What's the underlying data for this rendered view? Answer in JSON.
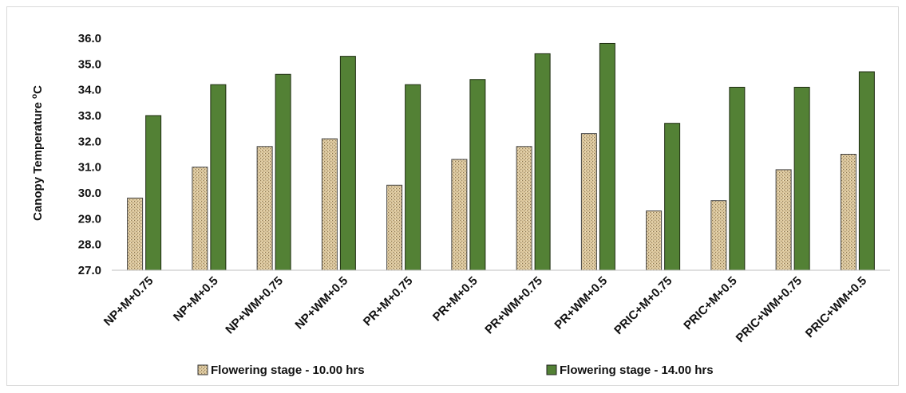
{
  "chart_data": {
    "type": "bar",
    "ylabel": "Canopy Temperature",
    "ylabel_superscript": "o",
    "ylabel_unit": "C",
    "ylim": [
      27.0,
      36.0
    ],
    "yticks": [
      "27.0",
      "28.0",
      "29.0",
      "30.0",
      "31.0",
      "32.0",
      "33.0",
      "34.0",
      "35.0",
      "36.0"
    ],
    "ytick_values": [
      27,
      28,
      29,
      30,
      31,
      32,
      33,
      34,
      35,
      36
    ],
    "categories": [
      "NP+M+0.75",
      "NP+M+0.5",
      "NP+WM+0.75",
      "NP+WM+0.5",
      "PR+M+0.75",
      "PR+M+0.5",
      "PR+WM+0.75",
      "PR+WM+0.5",
      "PRIC+M+0.75",
      "PRIC+M+0.5",
      "PRIC+WM+0.75",
      "PRIC+WM+0.5"
    ],
    "series": [
      {
        "name": "Flowering stage - 10.00 hrs",
        "color": "#d9c49a",
        "values": [
          29.8,
          31.0,
          31.8,
          32.1,
          30.3,
          31.3,
          31.8,
          32.3,
          29.3,
          29.7,
          30.9,
          31.5
        ]
      },
      {
        "name": "Flowering stage - 14.00 hrs",
        "color": "#538135",
        "values": [
          33.0,
          34.2,
          34.6,
          35.3,
          34.2,
          34.4,
          35.4,
          35.8,
          32.7,
          34.1,
          34.1,
          34.7
        ]
      }
    ],
    "legend_position": "bottom",
    "grid": false
  }
}
